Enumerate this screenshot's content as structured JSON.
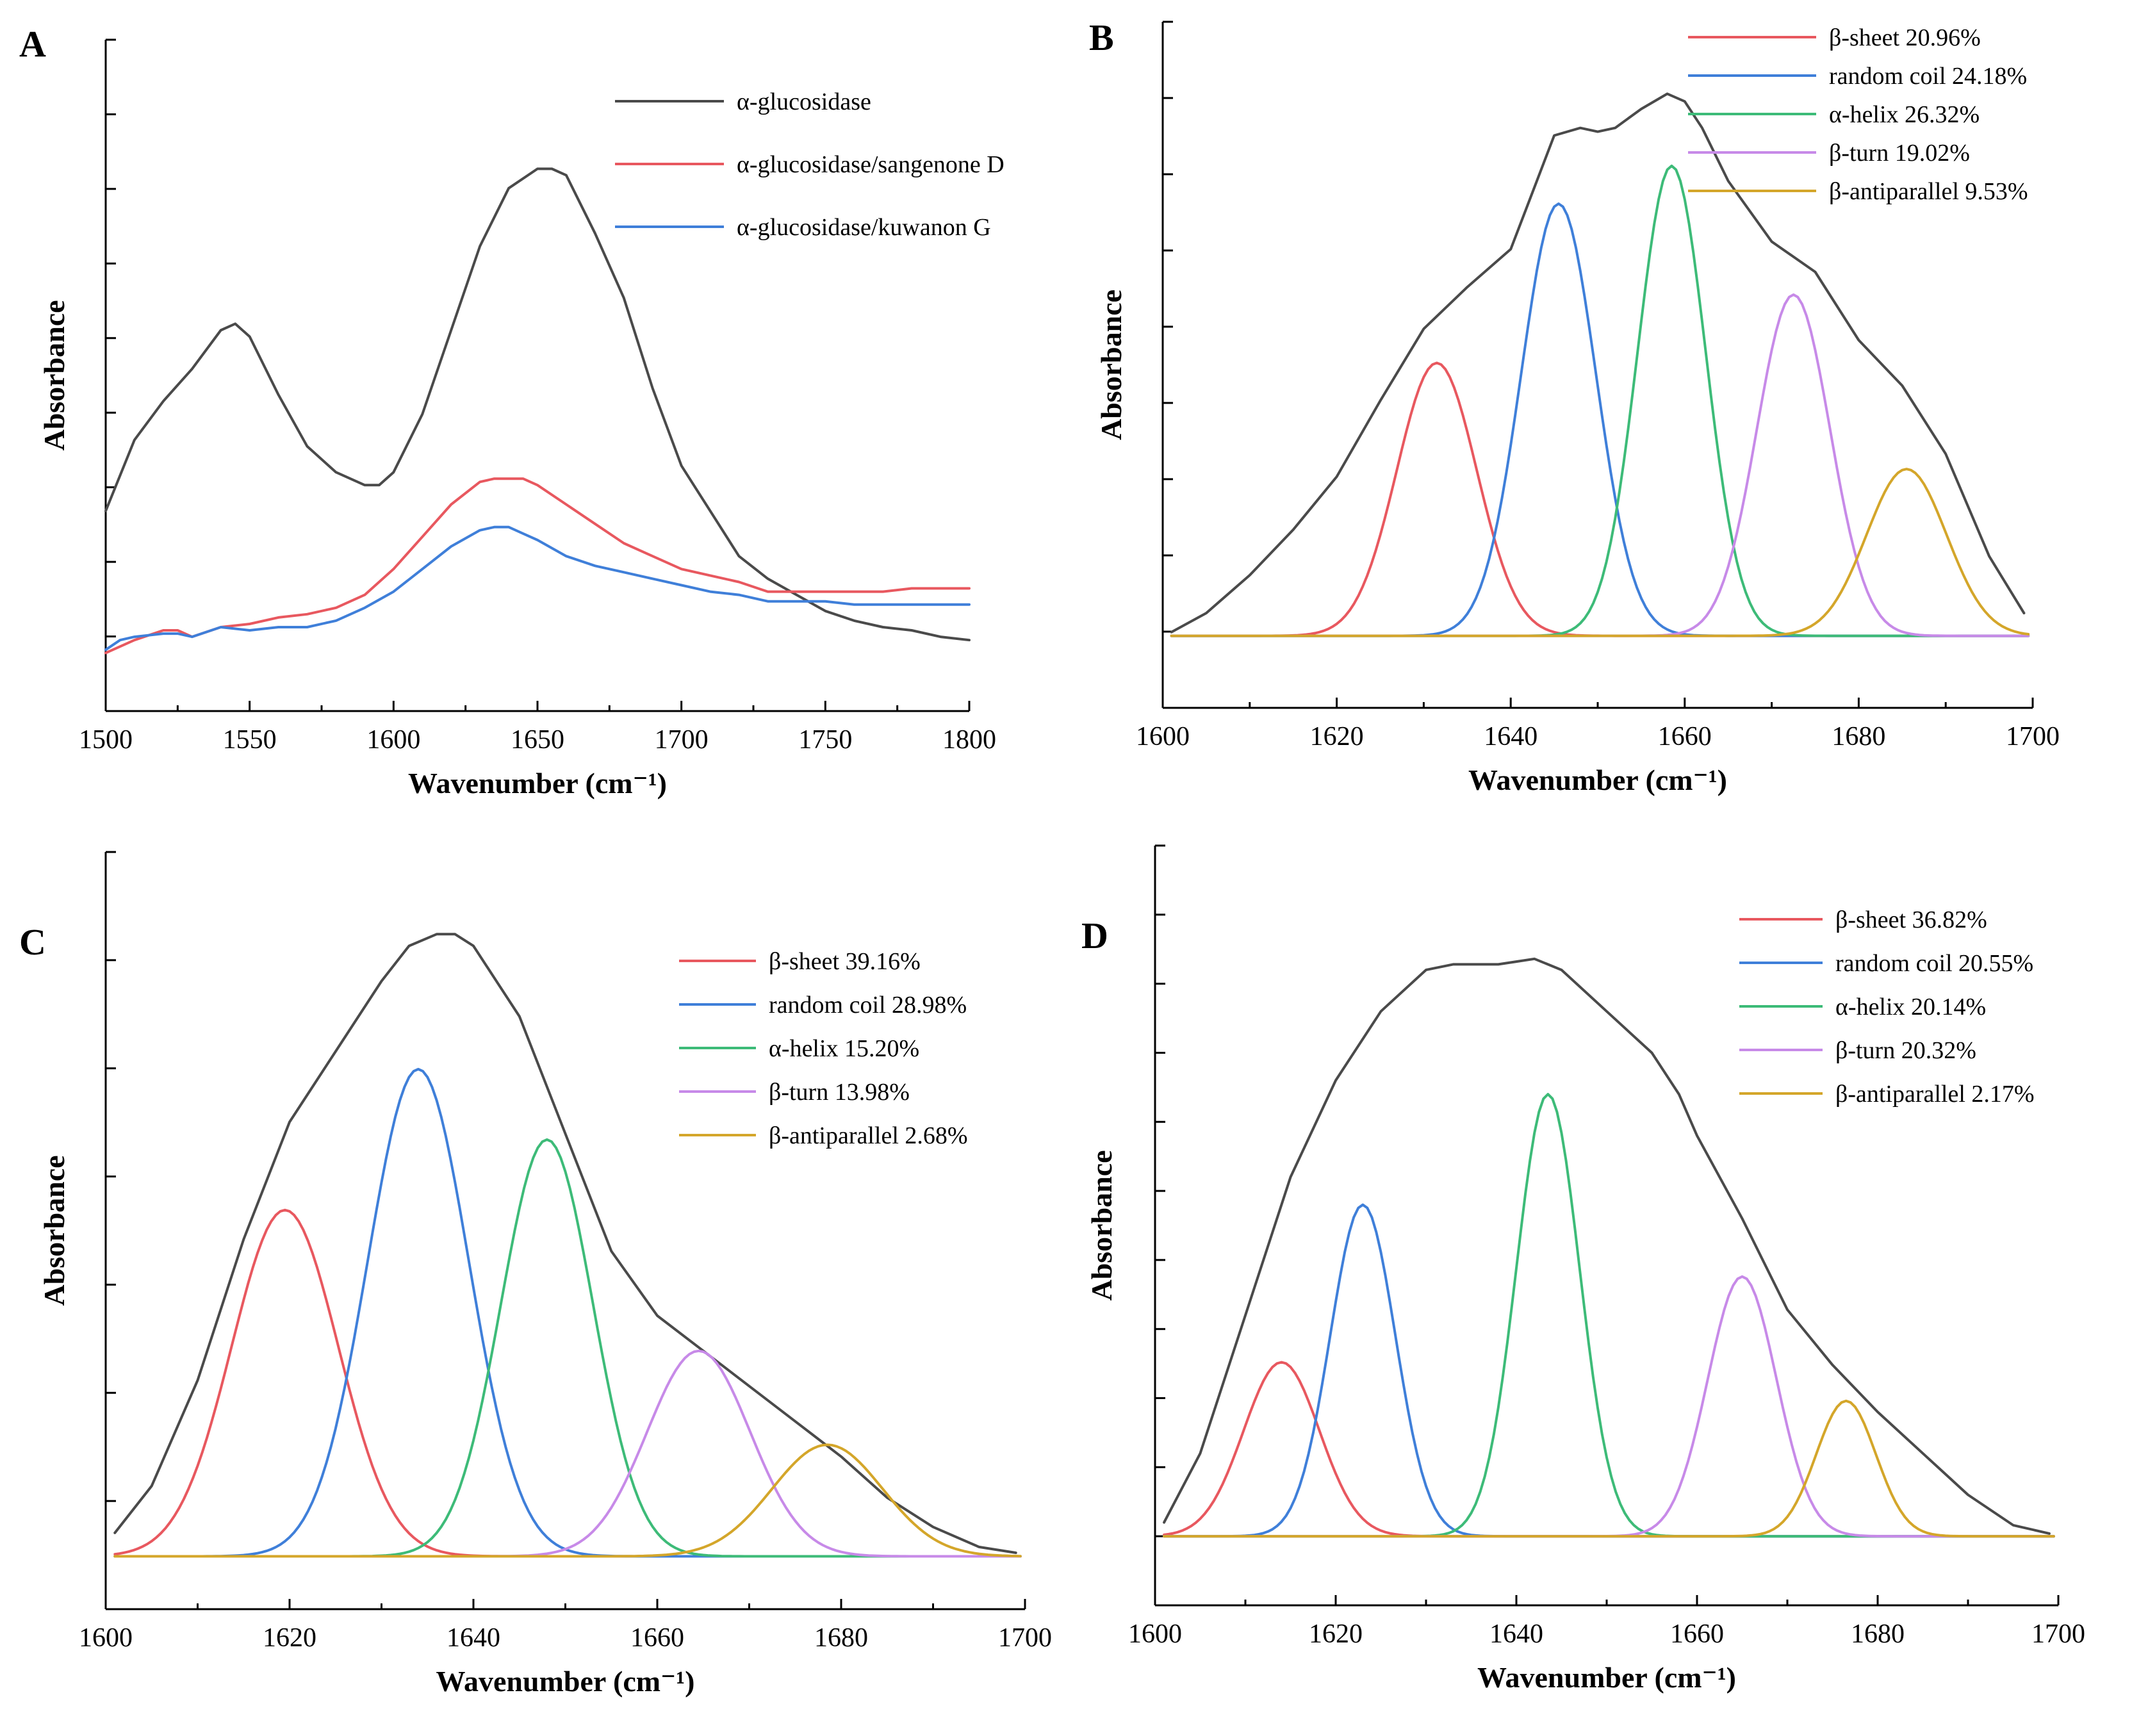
{
  "colors": {
    "black": "#4a4a4a",
    "red": "#e8585f",
    "blue": "#3f7fd9",
    "green": "#3dbb78",
    "purple": "#c78ae8",
    "gold": "#d4a62a"
  },
  "chart_data": [
    {
      "panel": "A",
      "type": "line",
      "xlabel": "Wavenumber (cm⁻¹)",
      "ylabel": "Absorbance",
      "xlim": [
        1500,
        1800
      ],
      "ylim": [
        -0.8,
        9.6
      ],
      "xticks": [
        1500,
        1550,
        1600,
        1650,
        1700,
        1750,
        1800
      ],
      "legend_position": "top-right",
      "series": [
        {
          "name": "α-glucosidase",
          "color": "black",
          "x": [
            1500,
            1510,
            1520,
            1530,
            1540,
            1545,
            1550,
            1560,
            1570,
            1580,
            1590,
            1595,
            1600,
            1610,
            1620,
            1630,
            1640,
            1650,
            1655,
            1660,
            1670,
            1680,
            1690,
            1700,
            1710,
            1720,
            1730,
            1740,
            1750,
            1760,
            1770,
            1780,
            1790,
            1800
          ],
          "y": [
            2.3,
            3.4,
            4.0,
            4.5,
            5.1,
            5.2,
            5.0,
            4.1,
            3.3,
            2.9,
            2.7,
            2.7,
            2.9,
            3.8,
            5.1,
            6.4,
            7.3,
            7.6,
            7.6,
            7.5,
            6.6,
            5.6,
            4.2,
            3.0,
            2.3,
            1.6,
            1.25,
            1.0,
            0.75,
            0.6,
            0.5,
            0.45,
            0.35,
            0.3
          ]
        },
        {
          "name": "α-glucosidase/sangenone D",
          "color": "red",
          "x": [
            1500,
            1510,
            1520,
            1525,
            1530,
            1540,
            1550,
            1560,
            1570,
            1580,
            1590,
            1600,
            1610,
            1620,
            1630,
            1635,
            1640,
            1645,
            1650,
            1660,
            1670,
            1680,
            1690,
            1700,
            1710,
            1720,
            1730,
            1740,
            1750,
            1760,
            1770,
            1780,
            1790,
            1800
          ],
          "y": [
            0.1,
            0.3,
            0.45,
            0.45,
            0.35,
            0.5,
            0.55,
            0.65,
            0.7,
            0.8,
            1.0,
            1.4,
            1.9,
            2.4,
            2.75,
            2.8,
            2.8,
            2.8,
            2.7,
            2.4,
            2.1,
            1.8,
            1.6,
            1.4,
            1.3,
            1.2,
            1.05,
            1.05,
            1.05,
            1.05,
            1.05,
            1.1,
            1.1,
            1.1
          ]
        },
        {
          "name": "α-glucosidase/kuwanon G",
          "color": "blue",
          "x": [
            1500,
            1505,
            1510,
            1520,
            1525,
            1530,
            1540,
            1550,
            1560,
            1570,
            1580,
            1590,
            1600,
            1610,
            1620,
            1630,
            1635,
            1640,
            1645,
            1650,
            1660,
            1670,
            1680,
            1690,
            1700,
            1710,
            1720,
            1730,
            1740,
            1750,
            1760,
            1770,
            1780,
            1790,
            1800
          ],
          "y": [
            0.15,
            0.3,
            0.35,
            0.4,
            0.4,
            0.35,
            0.5,
            0.45,
            0.5,
            0.5,
            0.6,
            0.8,
            1.05,
            1.4,
            1.75,
            2.0,
            2.05,
            2.05,
            1.95,
            1.85,
            1.6,
            1.45,
            1.35,
            1.25,
            1.15,
            1.05,
            1.0,
            0.9,
            0.9,
            0.9,
            0.85,
            0.85,
            0.85,
            0.85,
            0.85
          ]
        }
      ]
    },
    {
      "panel": "B",
      "type": "line",
      "xlabel": "Wavenumber (cm⁻¹)",
      "ylabel": "Absorbance",
      "xlim": [
        1600,
        1700
      ],
      "ylim": [
        -0.95,
        8.1
      ],
      "xticks": [
        1600,
        1620,
        1640,
        1660,
        1680,
        1700
      ],
      "legend_position": "top-right",
      "envelope": {
        "color": "black",
        "x": [
          1601,
          1605,
          1610,
          1615,
          1620,
          1625,
          1630,
          1635,
          1640,
          1642,
          1645,
          1648,
          1650,
          1652,
          1655,
          1658,
          1660,
          1662,
          1665,
          1670,
          1675,
          1680,
          1685,
          1690,
          1695,
          1699
        ],
        "y": [
          0.05,
          0.3,
          0.8,
          1.4,
          2.1,
          3.1,
          4.05,
          4.6,
          5.1,
          5.7,
          6.6,
          6.7,
          6.65,
          6.7,
          6.95,
          7.15,
          7.05,
          6.7,
          6.0,
          5.2,
          4.8,
          3.9,
          3.3,
          2.4,
          1.05,
          0.3
        ]
      },
      "series": [
        {
          "name": "β-sheet",
          "percent": "20.96%",
          "color": "red",
          "center": 1631.5,
          "amp": 3.6,
          "sigma": 4.6
        },
        {
          "name": "random coil",
          "percent": "24.18%",
          "color": "blue",
          "center": 1645.5,
          "amp": 5.7,
          "sigma": 4.3
        },
        {
          "name": "α-helix",
          "percent": "26.32%",
          "color": "green",
          "center": 1658.5,
          "amp": 6.2,
          "sigma": 3.9
        },
        {
          "name": "β-turn",
          "percent": "19.02%",
          "color": "purple",
          "center": 1672.5,
          "amp": 4.5,
          "sigma": 4.2
        },
        {
          "name": "β-antiparallel",
          "percent": "9.53%",
          "color": "gold",
          "center": 1685.5,
          "amp": 2.2,
          "sigma": 4.6
        }
      ]
    },
    {
      "panel": "C",
      "type": "line",
      "xlabel": "Wavenumber (cm⁻¹)",
      "ylabel": "Absorbance",
      "xlim": [
        1600,
        1700
      ],
      "ylim": [
        -0.45,
        6.0
      ],
      "xticks": [
        1600,
        1620,
        1640,
        1660,
        1680,
        1700
      ],
      "legend_position": "top-right",
      "envelope": {
        "color": "black",
        "x": [
          1601,
          1605,
          1610,
          1615,
          1620,
          1625,
          1630,
          1633,
          1636,
          1638,
          1640,
          1645,
          1650,
          1655,
          1660,
          1665,
          1670,
          1675,
          1680,
          1685,
          1690,
          1695,
          1699
        ],
        "y": [
          0.2,
          0.6,
          1.5,
          2.7,
          3.7,
          4.3,
          4.9,
          5.2,
          5.3,
          5.3,
          5.2,
          4.6,
          3.6,
          2.6,
          2.05,
          1.75,
          1.45,
          1.15,
          0.85,
          0.5,
          0.25,
          0.08,
          0.03
        ]
      },
      "series": [
        {
          "name": "β-sheet",
          "percent": "39.16%",
          "color": "red",
          "center": 1619.5,
          "amp": 2.95,
          "sigma": 5.8
        },
        {
          "name": "random coil",
          "percent": "28.98%",
          "color": "blue",
          "center": 1634,
          "amp": 4.15,
          "sigma": 5.5
        },
        {
          "name": "α-helix",
          "percent": "15.20%",
          "color": "green",
          "center": 1648,
          "amp": 3.55,
          "sigma": 5.0
        },
        {
          "name": "β-turn",
          "percent": "13.98%",
          "color": "purple",
          "center": 1664.5,
          "amp": 1.75,
          "sigma": 5.6
        },
        {
          "name": "β-antiparallel",
          "percent": "2.68%",
          "color": "gold",
          "center": 1678.5,
          "amp": 0.95,
          "sigma": 6.0
        }
      ]
    },
    {
      "panel": "D",
      "type": "line",
      "xlabel": "Wavenumber (cm⁻¹)",
      "ylabel": "Absorbance",
      "xlim": [
        1600,
        1700
      ],
      "ylim": [
        -0.25,
        2.5
      ],
      "xticks": [
        1600,
        1620,
        1640,
        1660,
        1680,
        1700
      ],
      "legend_position": "top-right",
      "envelope": {
        "color": "black",
        "x": [
          1601,
          1605,
          1610,
          1615,
          1620,
          1625,
          1630,
          1633,
          1635,
          1638,
          1640,
          1642,
          1645,
          1650,
          1655,
          1658,
          1660,
          1665,
          1670,
          1675,
          1680,
          1685,
          1690,
          1695,
          1699
        ],
        "y": [
          0.05,
          0.3,
          0.8,
          1.3,
          1.65,
          1.9,
          2.05,
          2.07,
          2.07,
          2.07,
          2.08,
          2.09,
          2.05,
          1.9,
          1.75,
          1.6,
          1.45,
          1.15,
          0.82,
          0.62,
          0.45,
          0.3,
          0.15,
          0.04,
          0.01
        ]
      },
      "series": [
        {
          "name": "β-sheet",
          "percent": "36.82%",
          "color": "red",
          "center": 1614,
          "amp": 0.63,
          "sigma": 4.2
        },
        {
          "name": "random coil",
          "percent": "20.55%",
          "color": "blue",
          "center": 1623,
          "amp": 1.2,
          "sigma": 3.6
        },
        {
          "name": "α-helix",
          "percent": "20.14%",
          "color": "green",
          "center": 1643.5,
          "amp": 1.6,
          "sigma": 3.5
        },
        {
          "name": "β-turn",
          "percent": "20.32%",
          "color": "purple",
          "center": 1665,
          "amp": 0.94,
          "sigma": 3.8
        },
        {
          "name": "β-antiparallel",
          "percent": "2.17%",
          "color": "gold",
          "center": 1676.5,
          "amp": 0.49,
          "sigma": 3.3
        }
      ]
    }
  ]
}
